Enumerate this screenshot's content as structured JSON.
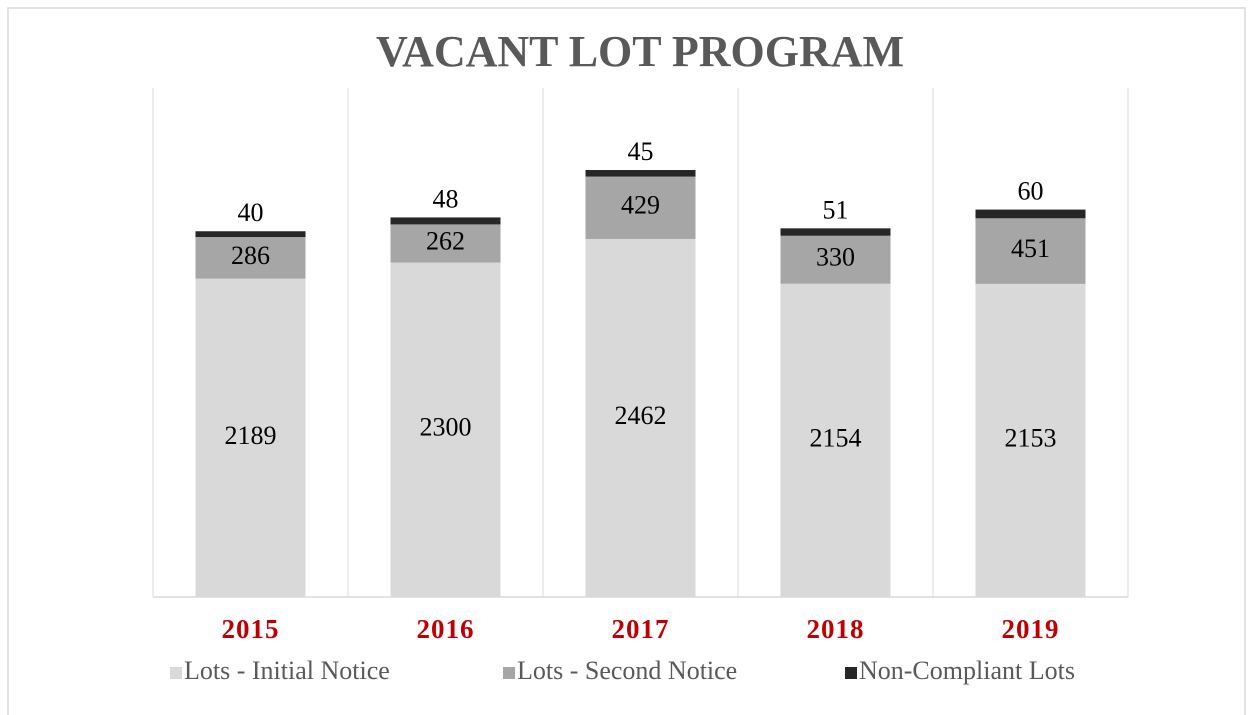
{
  "chart_data": {
    "type": "stacked_bar",
    "title": "VACANT LOT PROGRAM",
    "categories": [
      "2015",
      "2016",
      "2017",
      "2018",
      "2019"
    ],
    "series": [
      {
        "name": "Lots - Initial Notice",
        "color": "#d9d9d9",
        "values": [
          2189,
          2300,
          2462,
          2154,
          2153
        ]
      },
      {
        "name": "Lots - Second Notice",
        "color": "#a6a6a6",
        "values": [
          286,
          262,
          429,
          330,
          451
        ]
      },
      {
        "name": "Non-Compliant Lots",
        "color": "#262626",
        "values": [
          40,
          48,
          45,
          51,
          60
        ]
      }
    ],
    "ylim": [
      0,
      3500
    ],
    "legend": "bottom",
    "category_color": "#c00000"
  }
}
